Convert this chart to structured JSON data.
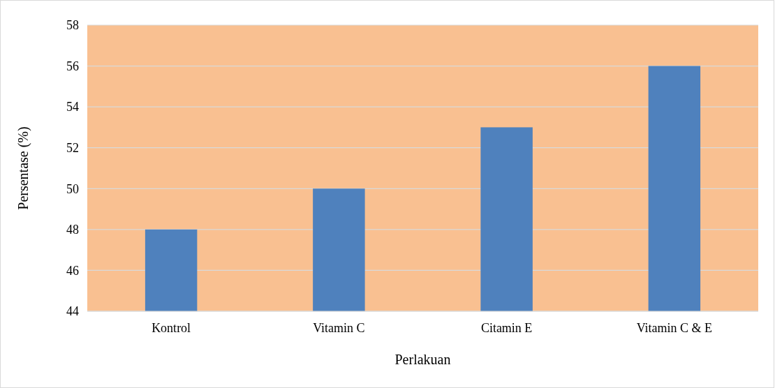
{
  "chart_data": {
    "type": "bar",
    "xlabel": "Perlakuan",
    "ylabel": "Persentase (%)",
    "categories": [
      "Kontrol",
      "Vitamin C",
      "Citamin E",
      "Vitamin C & E"
    ],
    "values": [
      48,
      50,
      53,
      56
    ],
    "color": "#4f81bd",
    "ylim": [
      44,
      58
    ],
    "yticks": [
      44,
      46,
      48,
      50,
      52,
      54,
      56,
      58
    ],
    "grid": "y"
  }
}
